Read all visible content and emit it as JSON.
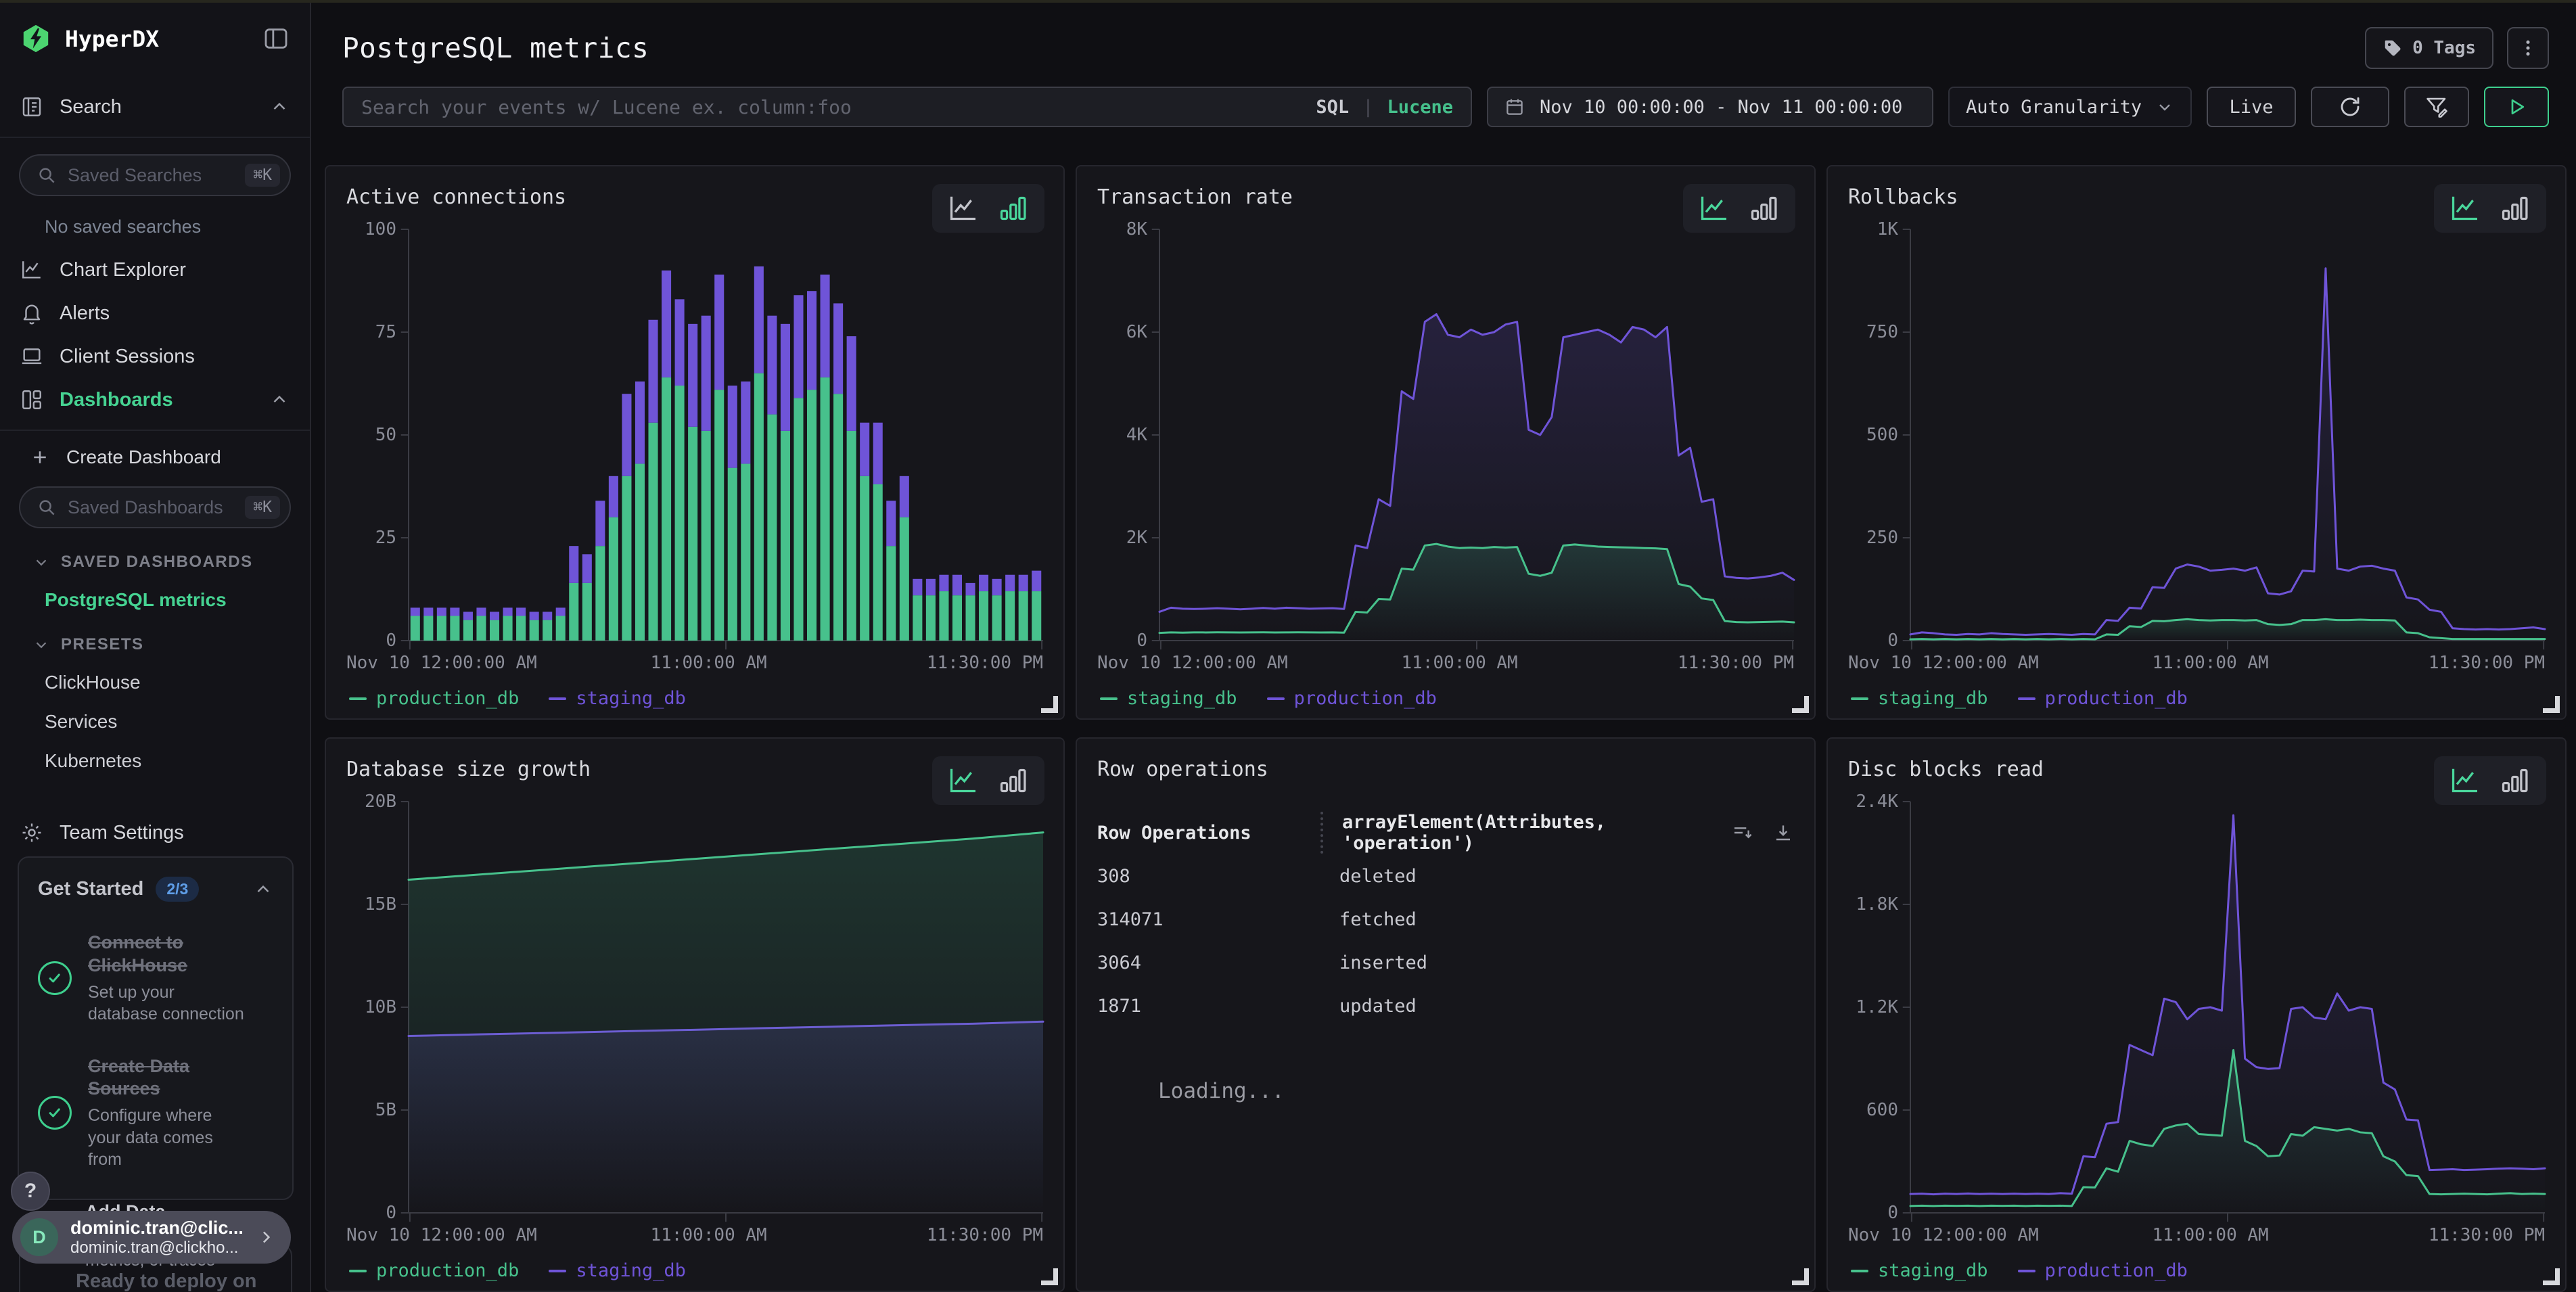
{
  "app": {
    "brand": "HyperDX"
  },
  "colors": {
    "series_green": "#47c18c",
    "series_purple": "#6f54d8",
    "accent_green": "#46d392",
    "badge_blue": "#5f9ee8"
  },
  "sidebar": {
    "search_nav": {
      "label": "Search"
    },
    "saved_searches": {
      "placeholder": "Saved Searches",
      "shortcut": "⌘K",
      "empty": "No saved searches"
    },
    "nav": [
      {
        "icon": "chartline",
        "label": "Chart Explorer"
      },
      {
        "icon": "bell",
        "label": "Alerts"
      },
      {
        "icon": "laptop",
        "label": "Client Sessions"
      }
    ],
    "dashboards_nav": {
      "label": "Dashboards"
    },
    "create_dashboard": "Create Dashboard",
    "saved_dashboards": {
      "placeholder": "Saved Dashboards",
      "shortcut": "⌘K"
    },
    "saved_section": {
      "label": "SAVED DASHBOARDS",
      "items": [
        {
          "label": "PostgreSQL metrics",
          "active": true
        }
      ]
    },
    "presets_section": {
      "label": "PRESETS",
      "items": [
        "ClickHouse",
        "Services",
        "Kubernetes"
      ]
    },
    "team_settings": "Team Settings",
    "get_started": {
      "title": "Get Started",
      "badge": "2/3",
      "items": [
        {
          "state": "done",
          "title": "Connect to ClickHouse",
          "desc": "Set up your database connection"
        },
        {
          "state": "done",
          "title": "Create Data Sources",
          "desc": "Configure where your data comes from"
        },
        {
          "state": "todo",
          "step": "3",
          "title": "Add Data",
          "desc": "Start sending logs, metrics, or traces",
          "arrow": true
        }
      ]
    },
    "help": "?",
    "user": {
      "initial": "D",
      "name": "dominic.tran@clic...",
      "email": "dominic.tran@clickho..."
    },
    "deploy_prompt": "Ready to deploy on"
  },
  "header": {
    "title": "PostgreSQL metrics",
    "tags_label": "0 Tags"
  },
  "toolbar": {
    "search_placeholder": "Search your events w/ Lucene ex. column:foo",
    "sql": "SQL",
    "divider": "|",
    "lucene": "Lucene",
    "date_range": "Nov 10 00:00:00 - Nov 11 00:00:00",
    "granularity": "Auto Granularity",
    "live": "Live"
  },
  "chart_data": [
    {
      "type": "bar",
      "title": "Active connections",
      "active_view": "bar",
      "ylim": [
        0,
        100
      ],
      "y_ticks": [
        "0",
        "25",
        "50",
        "75",
        "100"
      ],
      "x_ticks": [
        "Nov 10 12:00:00 AM",
        "11:00:00 AM",
        "11:30:00 PM"
      ],
      "series": [
        {
          "name": "production_db",
          "color": "green",
          "values": [
            6,
            6,
            6,
            6,
            5,
            6,
            5,
            6,
            6,
            5,
            5,
            6,
            14,
            14,
            23,
            30,
            40,
            43,
            53,
            64,
            62,
            52,
            51,
            61,
            42,
            43,
            65,
            55,
            51,
            59,
            61,
            64,
            60,
            51,
            40,
            38,
            23,
            30,
            11,
            11,
            12,
            11,
            11,
            12,
            11,
            12,
            12,
            12
          ]
        },
        {
          "name": "staging_db",
          "color": "purple",
          "values": [
            2,
            2,
            2,
            2,
            2,
            2,
            2,
            2,
            2,
            2,
            2,
            2,
            9,
            7,
            11,
            10,
            20,
            20,
            25,
            26,
            21,
            25,
            28,
            28,
            20,
            20,
            26,
            24,
            26,
            25,
            24,
            25,
            22,
            23,
            13,
            15,
            11,
            10,
            4,
            4,
            4,
            5,
            3,
            4,
            4,
            4,
            4,
            5
          ]
        }
      ]
    },
    {
      "type": "line",
      "title": "Transaction rate",
      "active_view": "line",
      "ylim": [
        0,
        8000
      ],
      "y_ticks": [
        "0",
        "2K",
        "4K",
        "6K",
        "8K"
      ],
      "x_ticks": [
        "Nov 10 12:00:00 AM",
        "11:00:00 AM",
        "11:30:00 PM"
      ],
      "series": [
        {
          "name": "staging_db",
          "color": "green",
          "values": [
            150,
            160,
            155,
            160,
            158,
            162,
            160,
            158,
            160,
            162,
            158,
            160,
            162,
            160,
            158,
            160,
            155,
            560,
            545,
            810,
            800,
            1400,
            1380,
            1850,
            1880,
            1830,
            1800,
            1810,
            1800,
            1820,
            1810,
            1820,
            1300,
            1260,
            1320,
            1850,
            1870,
            1850,
            1830,
            1820,
            1815,
            1810,
            1800,
            1795,
            1780,
            1100,
            1050,
            820,
            790,
            380,
            360,
            355,
            360,
            365,
            370,
            355
          ]
        },
        {
          "name": "production_db",
          "color": "purple",
          "values": [
            560,
            640,
            620,
            615,
            620,
            630,
            620,
            610,
            620,
            635,
            620,
            640,
            630,
            620,
            625,
            630,
            615,
            1850,
            1800,
            2750,
            2620,
            4850,
            4700,
            6200,
            6350,
            5950,
            5900,
            6050,
            5950,
            6000,
            6150,
            6200,
            4100,
            4000,
            4350,
            5900,
            5950,
            6000,
            6050,
            5950,
            5800,
            6100,
            6050,
            5900,
            6100,
            3600,
            3750,
            2700,
            2750,
            1250,
            1220,
            1210,
            1230,
            1260,
            1320,
            1180
          ]
        }
      ]
    },
    {
      "type": "line",
      "title": "Rollbacks",
      "active_view": "line",
      "ylim": [
        0,
        1000
      ],
      "y_ticks": [
        "0",
        "250",
        "500",
        "750",
        "1K"
      ],
      "x_ticks": [
        "Nov 10 12:00:00 AM",
        "11:00:00 AM",
        "11:30:00 PM"
      ],
      "series": [
        {
          "name": "staging_db",
          "color": "green",
          "values": [
            3,
            4,
            3,
            4,
            3,
            4,
            3,
            4,
            3,
            4,
            3,
            4,
            3,
            4,
            3,
            4,
            3,
            15,
            14,
            35,
            33,
            48,
            47,
            50,
            52,
            50,
            49,
            50,
            50,
            49,
            50,
            40,
            38,
            40,
            50,
            50,
            52,
            50,
            50,
            51,
            50,
            50,
            49,
            20,
            18,
            8,
            6,
            4,
            4,
            4,
            4,
            4,
            4,
            4,
            4,
            4
          ]
        },
        {
          "name": "production_db",
          "color": "purple",
          "values": [
            15,
            20,
            18,
            15,
            14,
            16,
            15,
            18,
            16,
            15,
            14,
            15,
            16,
            15,
            14,
            16,
            15,
            50,
            48,
            80,
            78,
            130,
            128,
            175,
            185,
            180,
            170,
            172,
            175,
            170,
            178,
            115,
            112,
            120,
            170,
            168,
            905,
            175,
            170,
            180,
            182,
            175,
            170,
            105,
            100,
            75,
            70,
            30,
            28,
            27,
            28,
            27,
            28,
            30,
            32,
            28
          ]
        }
      ]
    },
    {
      "type": "line",
      "title": "Database size growth",
      "active_view": "line",
      "ylim": [
        0,
        20
      ],
      "y_ticks": [
        "0",
        "5B",
        "10B",
        "15B",
        "20B"
      ],
      "x_ticks": [
        "Nov 10 12:00:00 AM",
        "11:00:00 AM",
        "11:30:00 PM"
      ],
      "series": [
        {
          "name": "production_db",
          "color": "green",
          "values": [
            16.2,
            16.45,
            16.7,
            16.95,
            17.2,
            17.45,
            17.7,
            17.95,
            18.2,
            18.5
          ]
        },
        {
          "name": "staging_db",
          "color": "purple",
          "values": [
            8.6,
            8.68,
            8.75,
            8.83,
            8.9,
            8.98,
            9.05,
            9.13,
            9.2,
            9.3
          ]
        }
      ]
    },
    {
      "type": "table",
      "title": "Row operations",
      "columns": [
        "Row Operations",
        "arrayElement(Attributes, 'operation')"
      ],
      "rows": [
        [
          "308",
          "deleted"
        ],
        [
          "314071",
          "fetched"
        ],
        [
          "3064",
          "inserted"
        ],
        [
          "1871",
          "updated"
        ]
      ],
      "status": "Loading..."
    },
    {
      "type": "line",
      "title": "Disc blocks read",
      "active_view": "line",
      "ylim": [
        0,
        2400
      ],
      "y_ticks": [
        "0",
        "600",
        "1.2K",
        "1.8K",
        "2.4K"
      ],
      "x_ticks": [
        "Nov 10 12:00:00 AM",
        "11:00:00 AM",
        "11:30:00 PM"
      ],
      "series": [
        {
          "name": "staging_db",
          "color": "green",
          "values": [
            40,
            42,
            40,
            42,
            41,
            42,
            40,
            42,
            41,
            42,
            40,
            42,
            41,
            42,
            40,
            150,
            148,
            260,
            240,
            420,
            400,
            390,
            490,
            510,
            520,
            460,
            455,
            450,
            950,
            420,
            390,
            330,
            335,
            460,
            450,
            500,
            490,
            480,
            490,
            470,
            465,
            330,
            300,
            220,
            215,
            110,
            108,
            110,
            112,
            110,
            108,
            112,
            115,
            110,
            112,
            110
          ]
        },
        {
          "name": "production_db",
          "color": "purple",
          "values": [
            110,
            112,
            108,
            112,
            110,
            113,
            110,
            112,
            110,
            112,
            110,
            112,
            110,
            115,
            112,
            330,
            325,
            520,
            530,
            980,
            950,
            920,
            1250,
            1230,
            1130,
            1190,
            1200,
            1180,
            2320,
            900,
            850,
            840,
            845,
            1190,
            1200,
            1140,
            1130,
            1280,
            1180,
            1200,
            1190,
            760,
            720,
            545,
            540,
            250,
            252,
            255,
            250,
            252,
            255,
            258,
            260,
            258,
            255,
            260
          ]
        }
      ]
    }
  ]
}
